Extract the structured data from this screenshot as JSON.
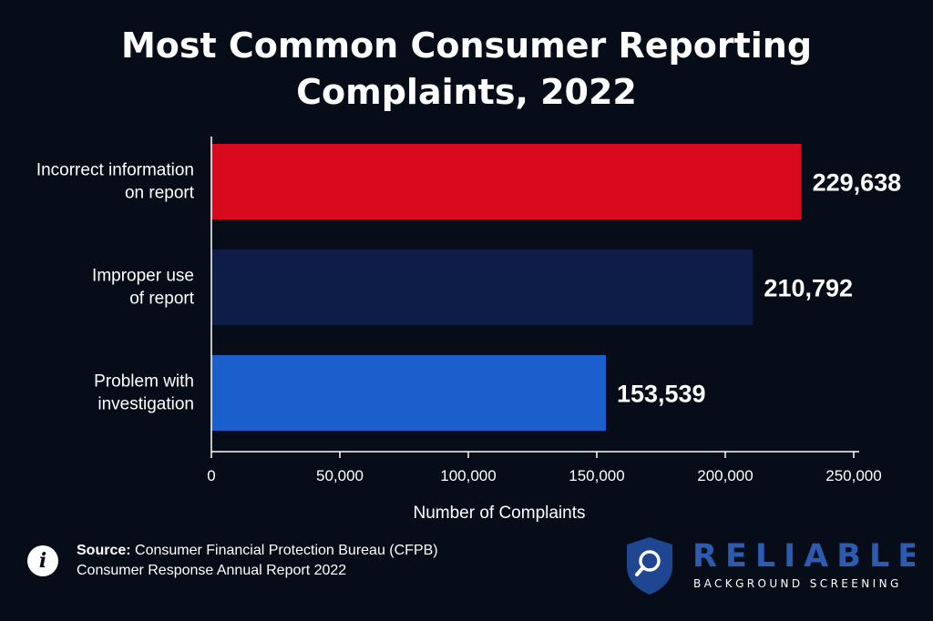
{
  "chart_data": {
    "type": "bar",
    "orientation": "horizontal",
    "title": "Most Common Consumer Reporting Complaints, 2022",
    "title_lines": [
      "Most Common Consumer Reporting",
      "Complaints, 2022"
    ],
    "categories": [
      [
        "Incorrect information",
        "on report"
      ],
      [
        "Improper use",
        "of report"
      ],
      [
        "Problem with",
        "investigation"
      ]
    ],
    "values": [
      229638,
      210792,
      153539
    ],
    "value_labels": [
      "229,638",
      "210,792",
      "153,539"
    ],
    "bar_colors": [
      "#d90a1e",
      "#0d1d48",
      "#1b5fcc"
    ],
    "xlabel": "Number of Complaints",
    "ylabel": "",
    "xlim": [
      0,
      250000
    ],
    "xticks": [
      0,
      50000,
      100000,
      150000,
      200000,
      250000
    ],
    "xtick_labels": [
      "0",
      "50,000",
      "100,000",
      "150,000",
      "200,000",
      "250,000"
    ],
    "grid": false,
    "legend": "none"
  },
  "source": {
    "label": "Source:",
    "line1": "Consumer Financial Protection Bureau (CFPB)",
    "line2": "Consumer Response Annual Report 2022",
    "icon": "info-icon"
  },
  "logo": {
    "name": "RELIABLE",
    "tagline": "BACKGROUND SCREENING",
    "icon": "shield-magnifier-icon",
    "colors": {
      "shield": "#1f4690",
      "text": "#2c5bb2",
      "tagline": "#ffffff"
    }
  }
}
